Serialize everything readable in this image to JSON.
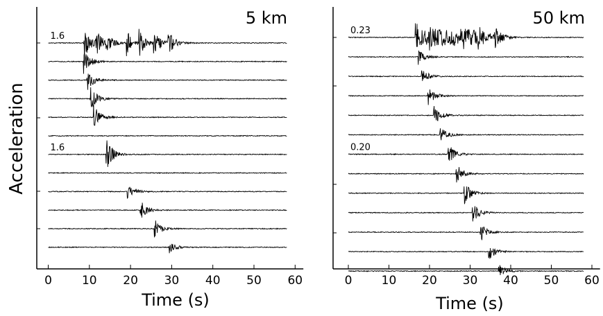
{
  "figure": {
    "ylabel": "Acceleration"
  },
  "chart_data": [
    {
      "type": "line",
      "title": "5 km",
      "xlabel": "Time (s)",
      "ylabel": "Acceleration",
      "xlim": [
        -3,
        62
      ],
      "xticks": [
        0,
        10,
        20,
        30,
        40,
        50,
        60
      ],
      "grid": false,
      "trace_start": 0,
      "trace_end": 58,
      "scale_labels": [
        {
          "trace_index": 0,
          "text": "1.6"
        },
        {
          "trace_index": 6,
          "text": "1.6"
        }
      ],
      "traces": [
        {
          "index": 0,
          "arrivals": [
            8.5,
            11.5,
            14,
            19,
            22,
            25.5,
            29
          ],
          "amplitude": 1.0
        },
        {
          "index": 1,
          "arrivals": [
            8.5
          ],
          "amplitude": 0.8
        },
        {
          "index": 2,
          "arrivals": [
            9.3
          ],
          "amplitude": 0.75
        },
        {
          "index": 3,
          "arrivals": [
            10.2
          ],
          "amplitude": 0.75
        },
        {
          "index": 4,
          "arrivals": [
            11.0
          ],
          "amplitude": 0.75
        },
        {
          "index": 5,
          "arrivals": [],
          "amplitude": 0.0
        },
        {
          "index": 6,
          "arrivals": [
            14.0
          ],
          "amplitude": 1.0
        },
        {
          "index": 7,
          "arrivals": [],
          "amplitude": 0.0
        },
        {
          "index": 8,
          "arrivals": [
            19.2
          ],
          "amplitude": 0.6
        },
        {
          "index": 9,
          "arrivals": [
            22.3
          ],
          "amplitude": 0.6
        },
        {
          "index": 10,
          "arrivals": [
            25.8
          ],
          "amplitude": 0.55
        },
        {
          "index": 11,
          "arrivals": [
            29.3
          ],
          "amplitude": 0.4
        }
      ]
    },
    {
      "type": "line",
      "title": "50 km",
      "xlabel": "Time (s)",
      "ylabel": "",
      "xlim": [
        -3,
        62
      ],
      "xticks": [
        0,
        10,
        20,
        30,
        40,
        50,
        60
      ],
      "grid": false,
      "trace_start": 0,
      "trace_end": 58,
      "scale_labels": [
        {
          "trace_index": 0,
          "text": "0.23"
        },
        {
          "trace_index": 6,
          "text": "0.20"
        }
      ],
      "traces": [
        {
          "index": 0,
          "arrivals": [
            16.5,
            20,
            24,
            28,
            32,
            36
          ],
          "amplitude": 1.0
        },
        {
          "index": 1,
          "arrivals": [
            17.0
          ],
          "amplitude": 0.5
        },
        {
          "index": 2,
          "arrivals": [
            18.0
          ],
          "amplitude": 0.5
        },
        {
          "index": 3,
          "arrivals": [
            19.5
          ],
          "amplitude": 0.6
        },
        {
          "index": 4,
          "arrivals": [
            21.0
          ],
          "amplitude": 0.6
        },
        {
          "index": 5,
          "arrivals": [
            22.5
          ],
          "amplitude": 0.65
        },
        {
          "index": 6,
          "arrivals": [
            24.5
          ],
          "amplitude": 0.7
        },
        {
          "index": 7,
          "arrivals": [
            26.5
          ],
          "amplitude": 0.7
        },
        {
          "index": 8,
          "arrivals": [
            28.5
          ],
          "amplitude": 0.7
        },
        {
          "index": 9,
          "arrivals": [
            30.5
          ],
          "amplitude": 0.65
        },
        {
          "index": 10,
          "arrivals": [
            32.5
          ],
          "amplitude": 0.6
        },
        {
          "index": 11,
          "arrivals": [
            34.5
          ],
          "amplitude": 0.5
        },
        {
          "index": 12,
          "arrivals": [
            37.0
          ],
          "amplitude": 0.4
        }
      ]
    }
  ]
}
